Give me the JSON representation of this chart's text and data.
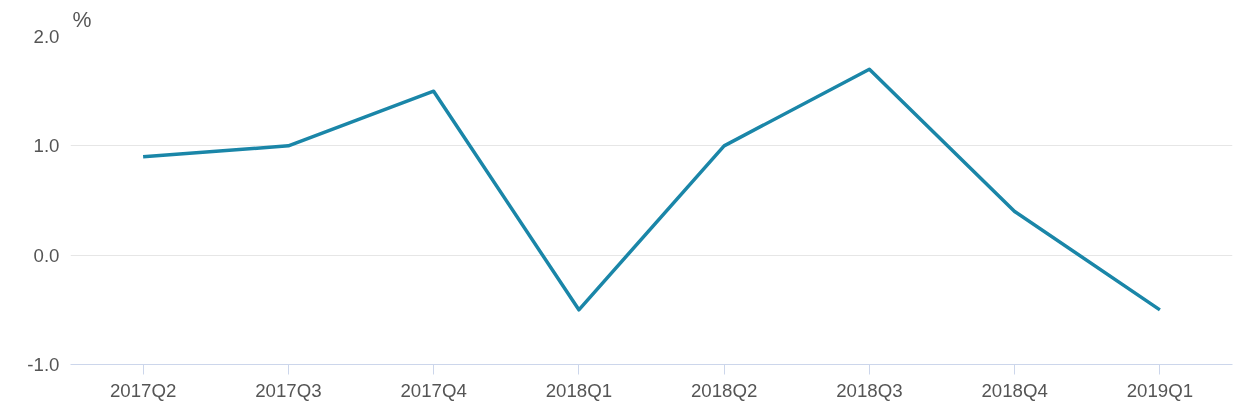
{
  "chart_data": {
    "type": "line",
    "ylabel": "%",
    "categories": [
      "2017Q2",
      "2017Q3",
      "2017Q4",
      "2018Q1",
      "2018Q2",
      "2018Q3",
      "2018Q4",
      "2019Q1"
    ],
    "series": [
      {
        "color": "#1a86a8",
        "values": [
          0.9,
          1.0,
          1.5,
          -0.5,
          1.0,
          1.7,
          0.4,
          -0.5
        ]
      }
    ],
    "ylim": [
      -1.0,
      2.0
    ],
    "yticks": [
      {
        "value": -1,
        "label": "-1.0"
      },
      {
        "value": 0,
        "label": "0.0"
      },
      {
        "value": 1,
        "label": "1.0"
      },
      {
        "value": 2,
        "label": "2.0"
      }
    ],
    "grid": "y"
  }
}
